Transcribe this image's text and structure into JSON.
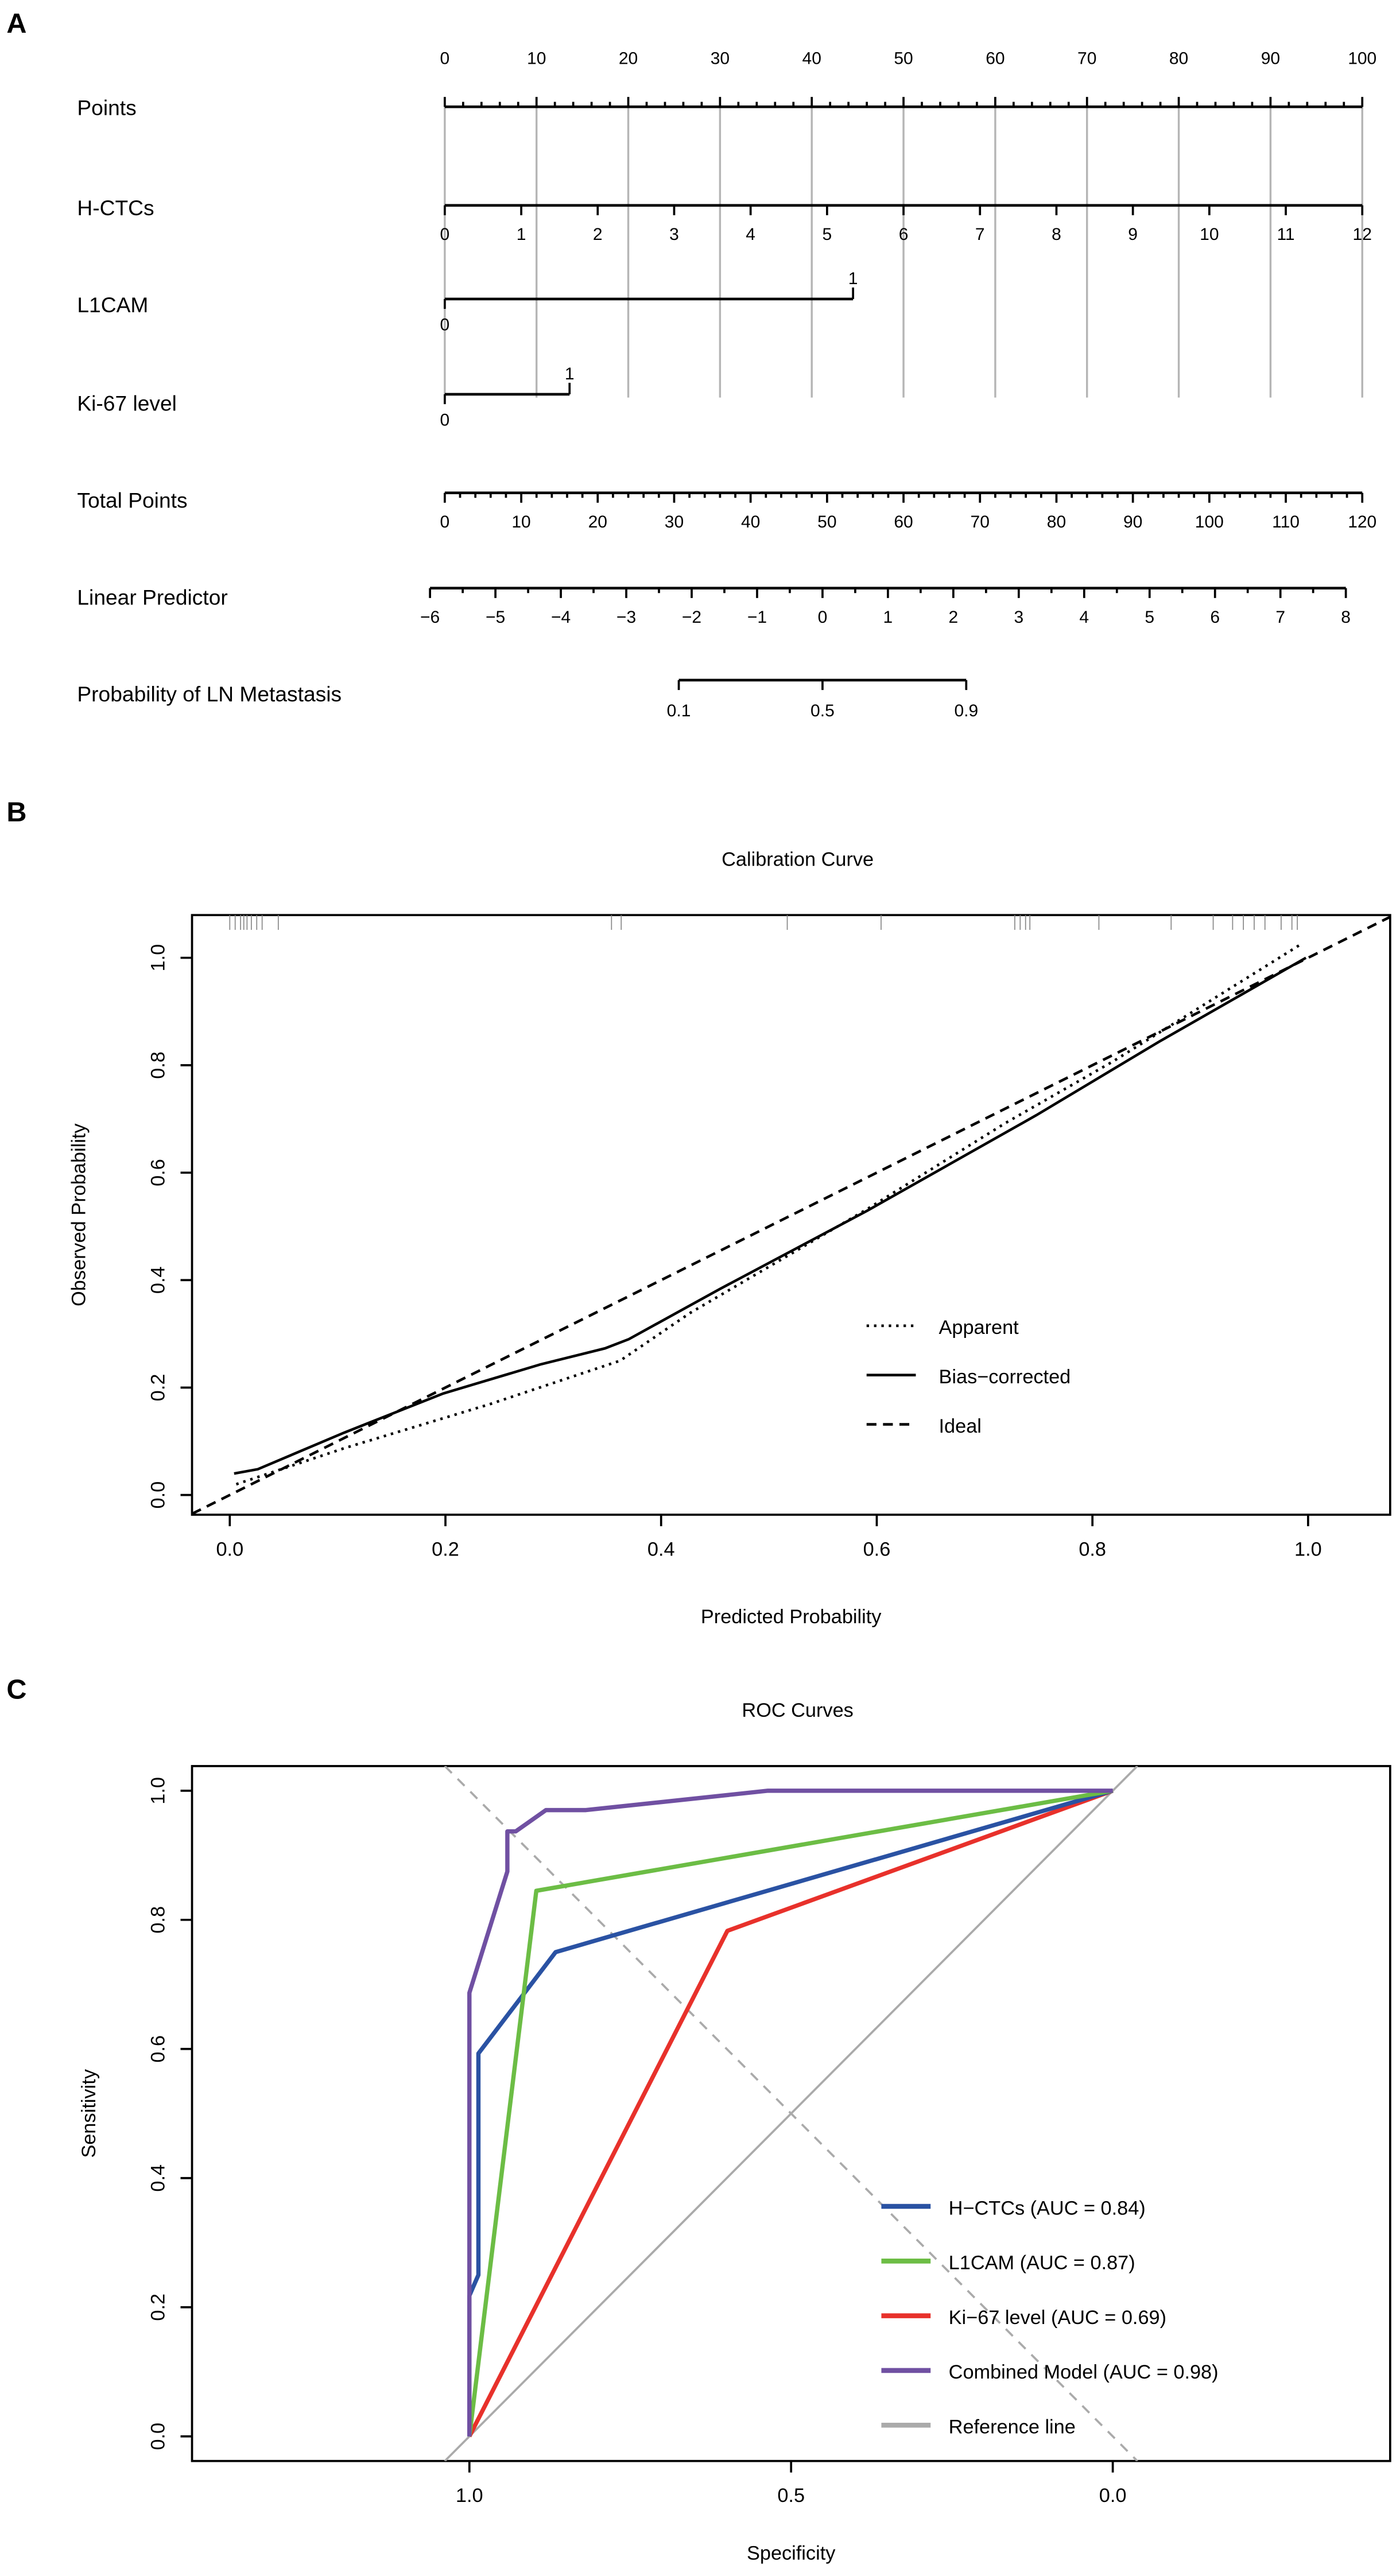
{
  "chart_data": [
    {
      "panel": "A",
      "type": "nomogram",
      "rows": [
        {
          "label": "Points",
          "ticks": [
            0,
            10,
            20,
            30,
            40,
            50,
            60,
            70,
            80,
            90,
            100
          ],
          "minor_step": 2
        },
        {
          "label": "H-CTCs",
          "values": [
            0,
            1,
            2,
            3,
            4,
            5,
            6,
            7,
            8,
            9,
            10,
            11,
            12
          ],
          "points_per_unit": 8.333
        },
        {
          "label": "L1CAM",
          "levels": [
            {
              "value": "0",
              "points": 0
            },
            {
              "value": "1",
              "points": 44.5
            }
          ]
        },
        {
          "label": "Ki-67 level",
          "levels": [
            {
              "value": "0",
              "points": 0
            },
            {
              "value": "1",
              "points": 13.6
            }
          ]
        },
        {
          "label": "Total Points",
          "ticks": [
            0,
            10,
            20,
            30,
            40,
            50,
            60,
            70,
            80,
            90,
            100,
            110,
            120
          ],
          "minor_step": 2
        },
        {
          "label": "Linear Predictor",
          "ticks": [
            -6,
            -5,
            -4,
            -3,
            -2,
            -1,
            0,
            1,
            2,
            3,
            4,
            5,
            6,
            7,
            8
          ],
          "minor_step": 0.5
        },
        {
          "label": "Probability of LN Metastasis",
          "ticks": [
            {
              "label": "0.1",
              "linear_predictor": -2.197
            },
            {
              "label": "0.5",
              "linear_predictor": 0
            },
            {
              "label": "0.9",
              "linear_predictor": 2.197
            }
          ]
        }
      ]
    },
    {
      "panel": "B",
      "type": "line",
      "title": "Calibration Curve",
      "xlabel": "Predicted Probability",
      "ylabel": "Observed Probability",
      "xlim": [
        -0.035,
        1.076
      ],
      "ylim": [
        -0.037,
        1.08
      ],
      "xticks": [
        "0.0",
        "0.2",
        "0.4",
        "0.6",
        "0.8",
        "1.0"
      ],
      "yticks": [
        "0.0",
        "0.2",
        "0.4",
        "0.6",
        "0.8",
        "1.0"
      ],
      "legend_position": "bottom-right",
      "series": [
        {
          "name": "Apparent",
          "style": "dotted",
          "x": [
            0.006,
            0.106,
            0.241,
            0.362,
            0.427,
            0.591,
            0.719,
            0.819,
            0.994
          ],
          "y": [
            0.02,
            0.087,
            0.169,
            0.25,
            0.339,
            0.532,
            0.692,
            0.807,
            1.026
          ]
        },
        {
          "name": "Bias−corrected",
          "style": "solid",
          "x": [
            0.004,
            0.026,
            0.106,
            0.198,
            0.288,
            0.348,
            0.37,
            0.455,
            0.591,
            0.748,
            0.862,
            0.998
          ],
          "y": [
            0.04,
            0.048,
            0.116,
            0.189,
            0.243,
            0.273,
            0.29,
            0.384,
            0.529,
            0.707,
            0.844,
            1.0
          ]
        },
        {
          "name": "Ideal",
          "style": "dashed",
          "x": [
            -0.035,
            1.076
          ],
          "y": [
            -0.035,
            1.076
          ]
        }
      ],
      "rug": [
        0.0,
        0.005,
        0.01,
        0.013,
        0.016,
        0.02,
        0.025,
        0.03,
        0.045,
        0.354,
        0.363,
        0.517,
        0.604,
        0.728,
        0.733,
        0.738,
        0.742,
        0.806,
        0.873,
        0.912,
        0.93,
        0.94,
        0.95,
        0.96,
        0.975,
        0.985,
        0.99
      ]
    },
    {
      "panel": "C",
      "type": "line",
      "title": "ROC Curves",
      "xlabel": "Specificity",
      "ylabel": "Sensitivity",
      "xlim": [
        1.43,
        -0.43
      ],
      "ylim": [
        -0.04,
        1.02
      ],
      "xticks": [
        "1.0",
        "0.5",
        "0.0"
      ],
      "yticks": [
        "0.0",
        "0.2",
        "0.4",
        "0.6",
        "0.8",
        "1.0"
      ],
      "legend_position": "bottom-right",
      "series": [
        {
          "name": "H−CTCs (AUC = 0.84)",
          "color": "#2a52a3",
          "x": [
            1,
            1,
            0.986,
            0.986,
            0.866,
            0
          ],
          "y": [
            0,
            0.218,
            0.25,
            0.593,
            0.75,
            1
          ]
        },
        {
          "name": "L1CAM (AUC = 0.87)",
          "color": "#6cbd45",
          "x": [
            1,
            0.896,
            0
          ],
          "y": [
            0,
            0.845,
            1
          ]
        },
        {
          "name": "Ki−67 level (AUC = 0.69)",
          "color": "#e8312b",
          "x": [
            1,
            0.599,
            0
          ],
          "y": [
            0,
            0.783,
            1
          ]
        },
        {
          "name": "Combined Model (AUC = 0.98)",
          "color": "#7050a2",
          "x": [
            1,
            1,
            0.941,
            0.941,
            0.928,
            0.881,
            0.819,
            0.536,
            0
          ],
          "y": [
            0,
            0.687,
            0.875,
            0.937,
            0.937,
            0.97,
            0.97,
            1,
            1
          ]
        },
        {
          "name": "Reference line",
          "color": "#aaaaaa",
          "x": [
            1.1,
            -0.1
          ],
          "y": [
            -0.1,
            1.1
          ]
        }
      ],
      "guide_line": {
        "color": "#aaaaaa",
        "style": "dashed",
        "x": [
          1.5,
          -0.5
        ],
        "y": [
          1.5,
          -0.5
        ]
      }
    }
  ]
}
